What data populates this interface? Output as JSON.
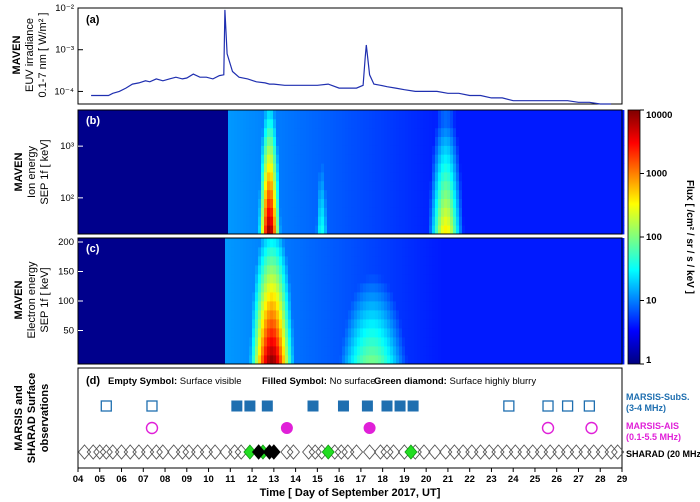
{
  "figure": {
    "x_axis": {
      "title": "Time  [ Day of September 2017, UT]",
      "start_day": 4,
      "end_day": 29,
      "ticks": [
        "04",
        "05",
        "06",
        "07",
        "08",
        "09",
        "10",
        "11",
        "12",
        "13",
        "14",
        "15",
        "16",
        "17",
        "18",
        "19",
        "20",
        "21",
        "22",
        "23",
        "24",
        "25",
        "26",
        "27",
        "28",
        "29"
      ]
    },
    "colors": {
      "euv_line": "#1f2fb0",
      "marsis_subs": "#1f6fb0",
      "marsis_ais": "#e020d8",
      "green_diamond": "#22dd22",
      "black_diamond": "#000000"
    },
    "colorbar": {
      "label": "Flux  [ /cm² / sr / s / keV ]",
      "ticks": [
        "10000",
        "1000",
        "100",
        "10",
        "1"
      ],
      "scale": "log",
      "range": [
        1,
        10000
      ]
    }
  },
  "chart_data": [
    {
      "type": "line",
      "panel_label": "(a)",
      "ylabel_lines": [
        "MAVEN",
        "EUV irradiance",
        "0.1-7 nm [ W/m² ]"
      ],
      "yscale": "log",
      "ylim": [
        5e-05,
        0.01
      ],
      "yticks": [
        "10⁻²",
        "10⁻³",
        "10⁻⁴"
      ],
      "series": [
        {
          "x": [
            4.6,
            5.0,
            5.4,
            5.6,
            5.9,
            6.2,
            6.5,
            6.8,
            7.1,
            7.3,
            7.6,
            7.9,
            8.2,
            8.5,
            8.8,
            9.0,
            9.3,
            9.6,
            9.9,
            10.2,
            10.5,
            10.7,
            10.75,
            10.85,
            11.1,
            11.4,
            11.8,
            12.2,
            12.6,
            12.8,
            13.0,
            13.5,
            14.0,
            14.5,
            15.0,
            15.5,
            16.0,
            16.3,
            16.8,
            17.1,
            17.2,
            17.25,
            17.4,
            17.6,
            17.9,
            18.2,
            18.6,
            19.0,
            19.5,
            20.0,
            20.5,
            21.0,
            21.5,
            22.0,
            22.5,
            23.0,
            23.5,
            24.0,
            24.5,
            25.0,
            25.5,
            26.0,
            26.5,
            27.0,
            27.5,
            28.0,
            28.5
          ],
          "values": [
            8e-05,
            8e-05,
            8e-05,
            9e-05,
            0.0001,
            0.00012,
            0.00015,
            0.00016,
            0.00018,
            0.00017,
            0.0002,
            0.00018,
            0.0002,
            0.00022,
            0.0002,
            0.00021,
            0.00026,
            0.00022,
            0.00022,
            0.0002,
            0.00024,
            0.00025,
            0.009,
            0.0008,
            0.0003,
            0.00022,
            0.0002,
            0.00017,
            0.00016,
            0.00015,
            0.00015,
            0.00014,
            0.00014,
            0.00014,
            0.00014,
            0.00015,
            0.00012,
            0.00012,
            0.00012,
            0.00014,
            0.00065,
            0.0013,
            0.00025,
            0.00015,
            0.00014,
            0.00013,
            0.00012,
            0.00011,
            0.0001,
            0.0001,
            0.0001,
            9e-05,
            9e-05,
            8e-05,
            8e-05,
            7e-05,
            7e-05,
            6e-05,
            6e-05,
            6e-05,
            6e-05,
            6e-05,
            6e-05,
            5.5e-05,
            5.5e-05,
            5e-05,
            5e-05
          ]
        }
      ],
      "gaps": [
        [
          16.6,
          16.9
        ]
      ]
    },
    {
      "type": "heatmap",
      "panel_label": "(b)",
      "ylabel_lines": [
        "MAVEN",
        "Ion energy",
        "SEP 1f [ keV]"
      ],
      "yscale": "log",
      "ylim": [
        20,
        5000
      ],
      "yticks": [
        "10³",
        "10²"
      ],
      "data_start_day": 10.85,
      "peaks": [
        {
          "day": 12.8,
          "width": 0.45,
          "amplitude": 4.0,
          "top": 4.0
        },
        {
          "day": 15.2,
          "width": 0.35,
          "amplitude": 1.6,
          "top": 2.3
        },
        {
          "day": 20.9,
          "width": 0.7,
          "amplitude": 2.6,
          "top": 2.8
        }
      ]
    },
    {
      "type": "heatmap",
      "panel_label": "(c)",
      "ylabel_lines": [
        "MAVEN",
        "Electron energy",
        "SEP 1f [ keV]"
      ],
      "yscale": "linear",
      "ylim": [
        0,
        200
      ],
      "yticks": [
        "200",
        "150",
        "100",
        "50"
      ],
      "data_start_day": 10.8,
      "peaks": [
        {
          "day": 12.9,
          "width": 0.9,
          "amplitude": 4.0,
          "top": 200
        },
        {
          "day": 17.5,
          "width": 1.6,
          "amplitude": 2.0,
          "top": 150
        }
      ]
    },
    {
      "type": "scatter",
      "panel_label": "(d)",
      "ylabel_lines": [
        "MARSIS and",
        "SHARAD Surface",
        "observations"
      ],
      "legend_text": [
        {
          "bold": "Empty Symbol:",
          "rest": " Surface visible"
        },
        {
          "bold": "Filled Symbol:",
          "rest": " No surface"
        },
        {
          "bold": "Green diamond:",
          "rest": " Surface highly blurry"
        }
      ],
      "series": [
        {
          "name_lines": [
            "MARSIS-SubS.",
            "(3-4 MHz)"
          ],
          "marker": "square",
          "empty": [
            5.3,
            7.4,
            23.8,
            25.6,
            26.5,
            27.5
          ],
          "filled": [
            11.3,
            11.9,
            12.7,
            14.8,
            16.2,
            17.3,
            18.2,
            18.8,
            19.4
          ]
        },
        {
          "name_lines": [
            "MARSIS-AIS",
            "(0.1-5.5 MHz)"
          ],
          "marker": "circle",
          "empty": [
            7.4,
            25.6,
            27.6
          ],
          "filled": [
            13.6,
            17.4
          ]
        },
        {
          "name_lines": [
            "SHARAD (20 MHz)"
          ],
          "marker": "diamond",
          "empty": [
            4.3,
            4.7,
            5.0,
            5.3,
            5.6,
            6.0,
            6.4,
            6.8,
            7.2,
            7.6,
            7.9,
            8.4,
            8.8,
            9.1,
            9.5,
            9.9,
            10.3,
            10.8,
            11.2,
            11.5,
            13.6,
            13.9,
            14.6,
            14.9,
            15.2,
            15.8,
            16.1,
            16.4,
            16.8,
            17.4,
            17.9,
            18.2,
            18.5,
            19.0,
            19.5,
            19.9,
            20.4,
            20.9,
            21.3,
            21.7,
            22.1,
            22.5,
            22.9,
            23.3,
            23.7,
            24.1,
            24.5,
            24.9,
            25.3,
            25.7,
            26.1,
            26.5,
            26.9,
            27.3,
            27.7,
            28.1,
            28.5,
            28.8
          ],
          "filled_black": [
            12.3,
            12.8,
            13.0
          ],
          "green": [
            11.9,
            12.5,
            15.5,
            19.3
          ]
        }
      ]
    }
  ]
}
